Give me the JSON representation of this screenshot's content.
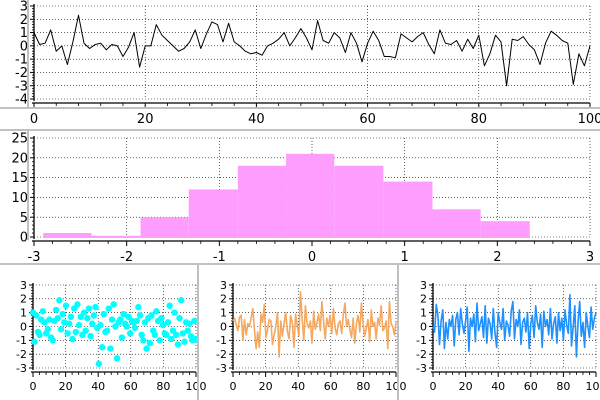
{
  "chart_data": [
    {
      "id": "line-top",
      "type": "line",
      "title": "",
      "xlabel": "",
      "ylabel": "",
      "xlim": [
        0,
        100
      ],
      "ylim": [
        -4,
        3
      ],
      "x_ticks": [
        0,
        20,
        40,
        60,
        80,
        100
      ],
      "y_ticks": [
        -4,
        -3,
        -2,
        -1,
        0,
        1,
        2,
        3
      ],
      "grid": true,
      "color": "#000000",
      "series": [
        {
          "values": [
            1.0,
            0.1,
            0.2,
            1.2,
            -0.4,
            0.0,
            -1.4,
            0.3,
            2.3,
            0.2,
            -0.2,
            0.1,
            0.2,
            -0.3,
            0.1,
            0.0,
            -0.8,
            -0.1,
            1.0,
            -1.6,
            0.0,
            0.0,
            1.6,
            0.8,
            0.4,
            0.0,
            -0.4,
            -0.2,
            0.3,
            1.2,
            -0.2,
            0.9,
            1.8,
            1.6,
            0.3,
            1.7,
            0.3,
            0.0,
            -0.4,
            -0.6,
            -0.5,
            -0.7,
            0.0,
            0.2,
            0.5,
            1.0,
            0.0,
            0.6,
            1.3,
            0.6,
            -0.3,
            1.9,
            0.4,
            0.2,
            1.0,
            0.6,
            -0.5,
            1.0,
            0.2,
            -1.2,
            0.2,
            1.1,
            0.4,
            -0.8,
            -0.8,
            -0.9,
            0.9,
            0.6,
            0.3,
            0.7,
            1.0,
            0.1,
            -0.6,
            1.2,
            0.2,
            0.1,
            0.4,
            -0.4,
            0.5,
            -0.2,
            0.8,
            -1.5,
            -0.6,
            0.8,
            0.3,
            -3.0,
            0.5,
            0.4,
            0.7,
            0.1,
            -0.3,
            -1.4,
            0.2,
            1.1,
            0.8,
            0.4,
            0.2,
            -2.9,
            -0.6,
            -1.5,
            0.0
          ]
        }
      ]
    },
    {
      "id": "histogram",
      "type": "bar",
      "title": "",
      "xlabel": "",
      "ylabel": "",
      "xlim": [
        -3,
        3
      ],
      "ylim": [
        0,
        25
      ],
      "x_ticks": [
        -3,
        -2,
        -1,
        0,
        1,
        2,
        3
      ],
      "y_ticks": [
        0,
        5,
        10,
        15,
        20,
        25
      ],
      "grid": true,
      "color": "#ff9dff",
      "bin_edges": [
        -2.9,
        -2.38,
        -1.85,
        -1.33,
        -0.8,
        -0.28,
        0.24,
        0.77,
        1.3,
        1.82,
        2.35
      ],
      "values": [
        1,
        0,
        5,
        12,
        18,
        21,
        18,
        14,
        7,
        4
      ]
    },
    {
      "id": "scatter-bottom-left",
      "type": "scatter",
      "title": "",
      "xlabel": "",
      "ylabel": "",
      "xlim": [
        0,
        100
      ],
      "ylim": [
        -3,
        3
      ],
      "x_ticks": [
        0,
        20,
        40,
        60,
        80,
        100
      ],
      "y_ticks": [
        -3,
        -2,
        -1,
        0,
        1,
        2,
        3
      ],
      "grid": true,
      "color": "#00ffff",
      "series": [
        {
          "values": [
            1.0,
            -1.1,
            0.8,
            -0.4,
            -0.6,
            0.5,
            1.1,
            0.3,
            -0.5,
            -0.2,
            0.5,
            -0.8,
            -1.0,
            0.4,
            1.2,
            0.6,
            1.9,
            -0.2,
            0.9,
            0.3,
            1.5,
            -0.5,
            0.2,
            0.7,
            -0.9,
            1.3,
            -0.4,
            1.6,
            0.1,
            0.7,
            -0.6,
            1.0,
            -0.3,
            0.6,
            1.3,
            -0.7,
            0.2,
            0.8,
            1.4,
            -0.1,
            -2.7,
            0.1,
            -1.5,
            0.9,
            -0.4,
            -0.3,
            1.3,
            -1.6,
            0.5,
            1.6,
            0.0,
            -2.3,
            0.3,
            0.5,
            -0.8,
            0.9,
            0.2,
            0.0,
            0.7,
            -0.5,
            0.4,
            0.3,
            -0.1,
            0.4,
            1.4,
            0.8,
            -0.6,
            -1.0,
            0.3,
            -1.6,
            0.6,
            -1.2,
            0.8,
            -0.3,
            -0.6,
            1.1,
            0.4,
            -1.0,
            0.6,
            0.1,
            -0.5,
            -0.6,
            0.3,
            1.5,
            -0.9,
            -0.3,
            1.0,
            -0.6,
            -1.3,
            0.6,
            1.9,
            -0.5,
            -1.1,
            0.3,
            -0.3,
            0.2,
            -0.7,
            -1.0,
            0.4,
            -0.9
          ]
        }
      ]
    },
    {
      "id": "line-bottom-middle",
      "type": "line",
      "title": "",
      "xlabel": "",
      "ylabel": "",
      "xlim": [
        0,
        100
      ],
      "ylim": [
        -3,
        3
      ],
      "x_ticks": [
        0,
        20,
        40,
        60,
        80,
        100
      ],
      "y_ticks": [
        -3,
        -2,
        -1,
        0,
        1,
        2,
        3
      ],
      "grid": true,
      "color": "#f4a860",
      "series": [
        {
          "values": [
            0.4,
            0.6,
            0.1,
            -0.3,
            0.7,
            0.8,
            -1.0,
            0.5,
            -0.6,
            0.2,
            0.0,
            0.6,
            1.3,
            -0.2,
            -1.6,
            -0.4,
            -1.5,
            0.9,
            0.3,
            1.6,
            -0.8,
            -0.2,
            0.5,
            0.4,
            -1.3,
            -0.6,
            0.0,
            1.0,
            -2.2,
            0.4,
            -0.7,
            0.2,
            1.0,
            -0.3,
            -0.9,
            0.8,
            0.3,
            -1.5,
            0.9,
            0.1,
            -0.7,
            2.5,
            0.5,
            -1.0,
            1.5,
            0.2,
            -0.1,
            0.4,
            -1.2,
            1.1,
            -0.2,
            0.3,
            0.9,
            -0.3,
            1.8,
            0.4,
            -0.9,
            0.6,
            0.0,
            0.8,
            -0.5,
            1.3,
            -0.1,
            -0.6,
            0.2,
            0.4,
            -0.5,
            0.9,
            1.7,
            0.0,
            0.5,
            -0.2,
            -0.8,
            0.6,
            -1.2,
            0.3,
            0.8,
            -0.4,
            1.7,
            0.2,
            -0.7,
            -0.1,
            0.5,
            -1.1,
            1.2,
            0.0,
            0.3,
            -0.9,
            0.6,
            0.1,
            1.5,
            -0.3,
            -0.1,
            0.4,
            -1.6,
            1.8,
            0.2,
            0.0,
            -0.6,
            0.3
          ]
        }
      ]
    },
    {
      "id": "line-bottom-right",
      "type": "line",
      "title": "",
      "xlabel": "",
      "ylabel": "",
      "xlim": [
        0,
        100
      ],
      "ylim": [
        -3,
        3
      ],
      "x_ticks": [
        0,
        20,
        40,
        60,
        80,
        100
      ],
      "y_ticks": [
        -3,
        -2,
        -1,
        0,
        1,
        2,
        3
      ],
      "grid": true,
      "color": "#1e90ff",
      "series": [
        {
          "values": [
            0.0,
            -0.4,
            1.6,
            0.8,
            -1.3,
            0.4,
            1.2,
            -1.6,
            0.3,
            -0.9,
            0.5,
            0.0,
            0.8,
            -1.4,
            0.5,
            1.0,
            -0.6,
            1.3,
            0.2,
            -0.5,
            0.4,
            1.4,
            -1.8,
            0.6,
            0.0,
            0.9,
            -1.1,
            1.7,
            -0.3,
            0.2,
            0.7,
            -0.8,
            1.5,
            -1.2,
            0.6,
            0.2,
            -0.9,
            1.3,
            -0.4,
            -1.5,
            1.0,
            0.3,
            -0.2,
            1.3,
            -1.0,
            0.4,
            0.1,
            -0.7,
            1.1,
            1.8,
            -0.9,
            0.5,
            0.0,
            1.2,
            -1.3,
            0.3,
            0.6,
            -0.4,
            1.0,
            -1.6,
            0.2,
            0.8,
            -0.8,
            1.5,
            0.3,
            -0.2,
            0.9,
            -1.5,
            1.1,
            0.0,
            0.5,
            -0.6,
            1.3,
            -0.9,
            0.2,
            0.7,
            -1.2,
            1.0,
            -0.3,
            0.6,
            -1.0,
            1.2,
            0.1,
            -0.5,
            2.3,
            -1.4,
            0.0,
            1.5,
            -2.2,
            0.4,
            1.8,
            -0.7,
            0.3,
            -1.5,
            1.0,
            0.0,
            -0.8,
            1.4,
            -0.2,
            0.6,
            1.0
          ]
        }
      ]
    }
  ]
}
